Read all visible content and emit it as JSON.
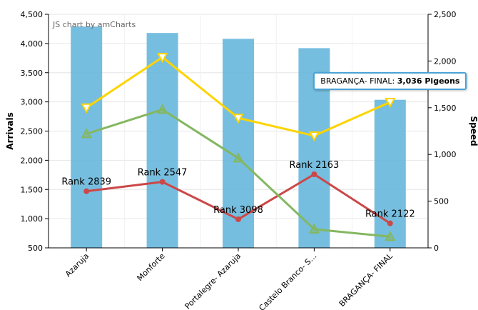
{
  "chart_data": {
    "type": "bar",
    "credit": "JS chart by amCharts",
    "categories": [
      "Azaruja",
      "Monforte",
      "Portalegre- Azaruja",
      "Castelo Branco- S…",
      "BRAGANÇA- FINAL"
    ],
    "ylabel_left": "Arrivals",
    "ylabel_right": "Speed",
    "ylim_left": [
      500,
      4500
    ],
    "ylim_right": [
      0,
      2500
    ],
    "yticks_left": [
      "500",
      "1,000",
      "1,500",
      "2,000",
      "2,500",
      "3,000",
      "3,500",
      "4,000",
      "4,500"
    ],
    "yticks_right": [
      "0",
      "500",
      "1,000",
      "1,500",
      "2,000",
      "2,500"
    ],
    "grid": true,
    "series": [
      {
        "kind": "bar",
        "axis": "left",
        "color": "#67b7dc",
        "values": [
          4290,
          4180,
          4080,
          3920,
          3036
        ]
      },
      {
        "kind": "line",
        "axis": "left",
        "color": "#cc4748",
        "marker": "circle",
        "values": [
          1470,
          1630,
          990,
          1760,
          920
        ],
        "labels": [
          "Rank 2839",
          "Rank 2547",
          "Rank 3098",
          "Rank 2163",
          "Rank 2122"
        ]
      },
      {
        "kind": "line",
        "axis": "right",
        "color": "#fdd400",
        "marker": "triangle-down",
        "values": [
          1500,
          2040,
          1390,
          1200,
          1560
        ]
      },
      {
        "kind": "line",
        "axis": "right",
        "color": "#84b761",
        "marker": "triangle-up",
        "values": [
          1220,
          1480,
          960,
          200,
          120
        ]
      }
    ],
    "tooltip": {
      "category_index": 4,
      "label": "BRAGANÇA- FINAL:",
      "value_text": "3,036 Pigeons",
      "border_color": "#4aa3d4"
    }
  }
}
